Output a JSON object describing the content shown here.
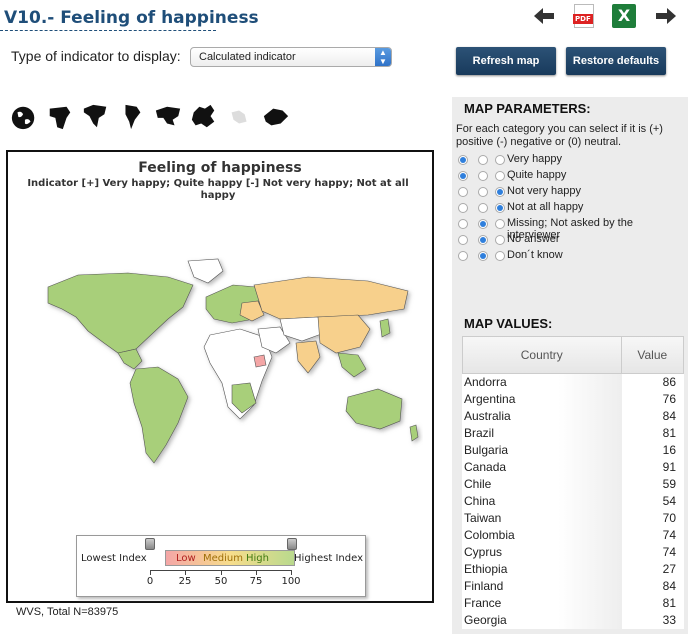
{
  "page": {
    "title": "V10.- Feeling of happiness"
  },
  "toolbar": {
    "back_icon": "arrow-left-icon",
    "pdf_icon": "pdf-icon",
    "pdf_text": "PDF",
    "excel_icon": "excel-icon",
    "excel_text": "X",
    "forward_icon": "arrow-right-icon"
  },
  "indicator": {
    "label": "Type of indicator to display:",
    "selected": "Calculated indicator"
  },
  "buttons": {
    "refresh": "Refresh map",
    "restore": "Restore defaults"
  },
  "regions": [
    "world-icon",
    "africa-icon",
    "north-america-icon",
    "south-america-icon",
    "asia-icon",
    "europe-icon",
    "middle-east-icon",
    "oceania-icon"
  ],
  "map": {
    "title": "Feeling of happiness",
    "subtitle": "Indicator [+] Very happy; Quite happy [-] Not very happy; Not at all happy",
    "legend": {
      "low_label": "Lowest Index",
      "high_label": "Highest Index",
      "bar_low": "Low",
      "bar_medium": "Medium",
      "bar_high": "High",
      "ticks": [
        "0",
        "25",
        "50",
        "75",
        "100"
      ]
    },
    "colors": {
      "low": "#f4a6a6",
      "medium": "#f7d08c",
      "high": "#a8cf7a",
      "nodata": "#ffffff"
    }
  },
  "footer": {
    "note": "WVS, Total N=83975"
  },
  "parameters": {
    "heading": "MAP PARAMETERS:",
    "description": "For each category you can select if it is (+) positive (-) negative or (0) neutral.",
    "rows": [
      {
        "label": "Very happy",
        "selected": 0
      },
      {
        "label": "Quite happy",
        "selected": 0
      },
      {
        "label": "Not very happy",
        "selected": 2
      },
      {
        "label": "Not at all happy",
        "selected": 2
      },
      {
        "label": "Missing; Not asked by the interviewer",
        "selected": 1
      },
      {
        "label": "No answer",
        "selected": 1
      },
      {
        "label": "Don´t know",
        "selected": 1
      }
    ]
  },
  "values": {
    "heading": "MAP VALUES:",
    "col_country": "Country",
    "col_value": "Value",
    "rows": [
      {
        "country": "Andorra",
        "value": "86"
      },
      {
        "country": "Argentina",
        "value": "76"
      },
      {
        "country": "Australia",
        "value": "84"
      },
      {
        "country": "Brazil",
        "value": "81"
      },
      {
        "country": "Bulgaria",
        "value": "16"
      },
      {
        "country": "Canada",
        "value": "91"
      },
      {
        "country": "Chile",
        "value": "59"
      },
      {
        "country": "China",
        "value": "54"
      },
      {
        "country": "Taiwan",
        "value": "70"
      },
      {
        "country": "Colombia",
        "value": "74"
      },
      {
        "country": "Cyprus",
        "value": "74"
      },
      {
        "country": "Ethiopia",
        "value": "27"
      },
      {
        "country": "Finland",
        "value": "84"
      },
      {
        "country": "France",
        "value": "81"
      },
      {
        "country": "Georgia",
        "value": "33"
      }
    ]
  }
}
